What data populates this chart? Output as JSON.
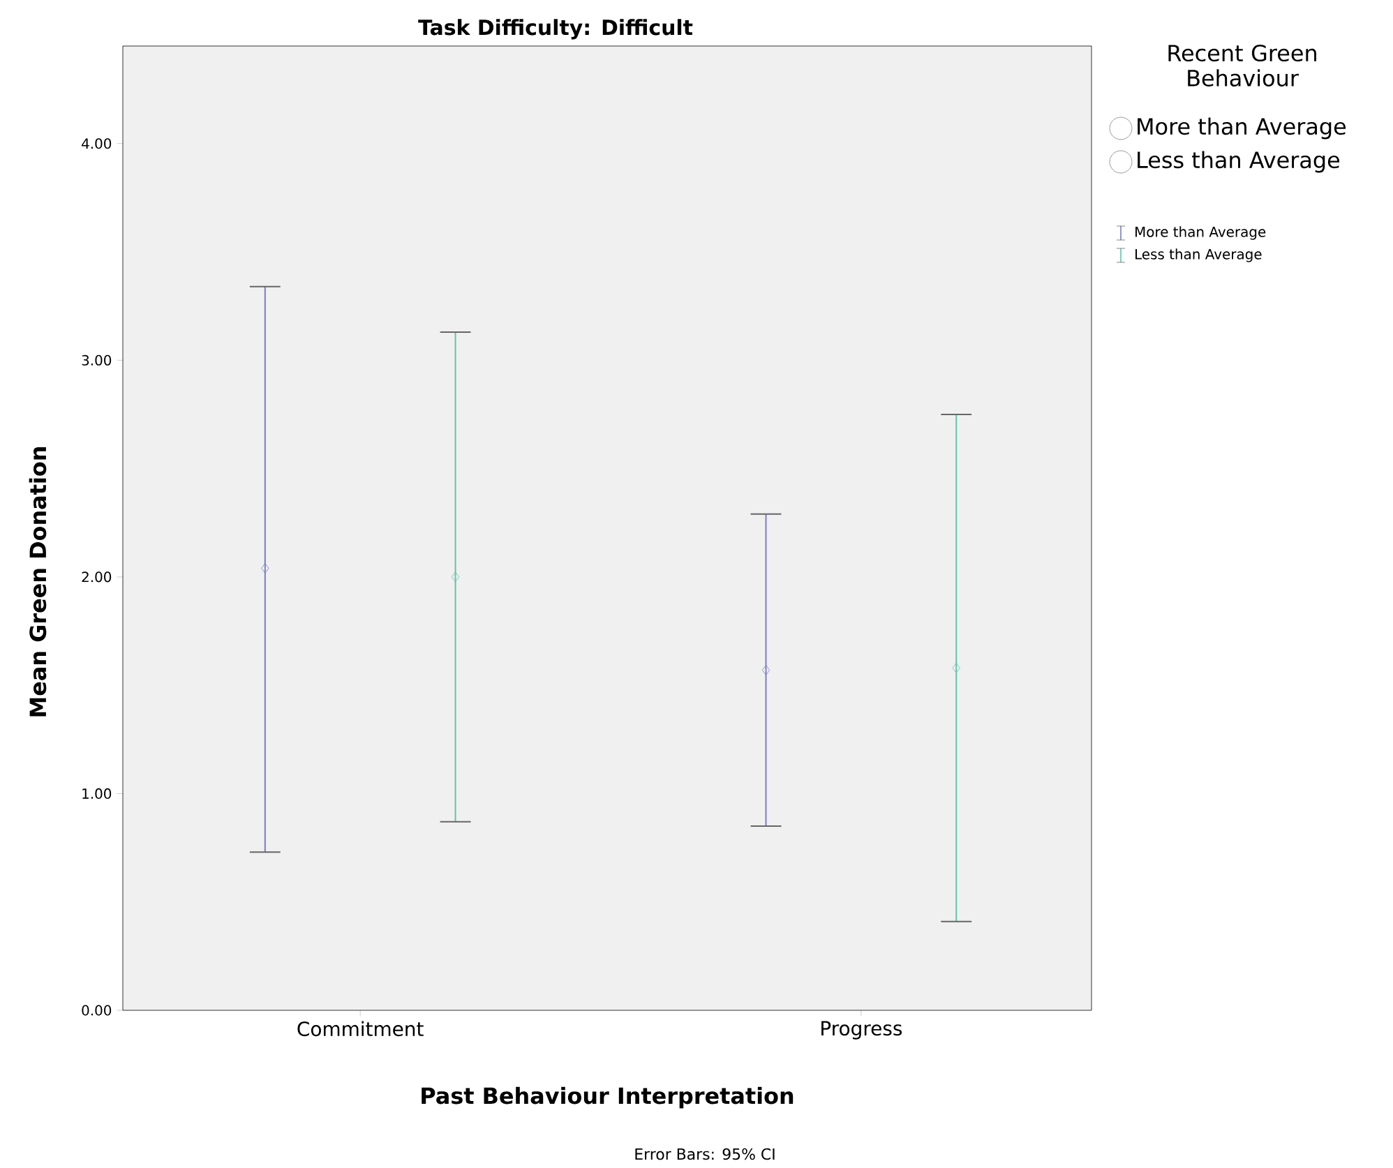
{
  "chart_data": {
    "type": "scatter",
    "title": "Task Difficulty: Difficult",
    "xlabel": "Past Behaviour Interpretation",
    "ylabel": "Mean Green Donation",
    "legend_title": "Recent Green Behaviour",
    "categories": [
      "Commitment",
      "Progress"
    ],
    "series": [
      {
        "name": "More than Average",
        "color": "#7b7bc8",
        "values": [
          2.04,
          1.57
        ],
        "errors": [
          [
            0.73,
            3.34
          ],
          [
            0.85,
            2.29
          ]
        ]
      },
      {
        "name": "Less than Average",
        "color": "#5fc4a8",
        "values": [
          2.0,
          1.58
        ],
        "errors": [
          [
            0.87,
            3.13
          ],
          [
            0.41,
            2.75
          ]
        ]
      }
    ],
    "ylim": [
      0,
      4.45
    ],
    "yticks": [
      {
        "value": 0,
        "label": "0.00"
      },
      {
        "value": 1,
        "label": "1.00"
      },
      {
        "value": 2,
        "label": "2.00"
      },
      {
        "value": 3,
        "label": "3.00"
      },
      {
        "value": 4,
        "label": "4.00"
      }
    ],
    "marker": "diamond",
    "legend": "right",
    "grid": false,
    "annotations": [
      "Error Bars: 95% CI"
    ]
  }
}
